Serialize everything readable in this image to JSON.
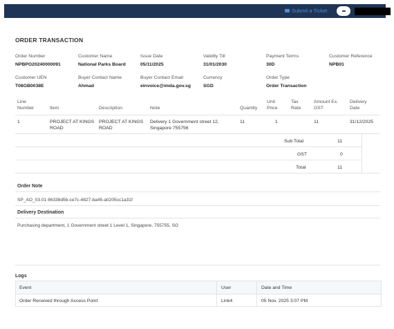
{
  "topbar": {
    "submit_ticket_label": "Submit a Ticket",
    "accent": "#1f3556"
  },
  "page": {
    "title": "ORDER TRANSACTION"
  },
  "details": {
    "order_number": {
      "label": "Order Number",
      "value": "NPBPO20240000091"
    },
    "customer_name": {
      "label": "Customer Name",
      "value": "National Parks Board"
    },
    "issue_date": {
      "label": "Issue Date",
      "value": "05/11/2025"
    },
    "validity_till": {
      "label": "Validity Till",
      "value": "31/01/2030"
    },
    "payment_terms": {
      "label": "Payment Terms",
      "value": "30D"
    },
    "customer_reference": {
      "label": "Customer Reference",
      "value": "NPB01"
    },
    "customer_uen": {
      "label": "Customer UEN",
      "value": "T08GB0038E"
    },
    "buyer_contact_name": {
      "label": "Buyer Contact Name",
      "value": "Ahmad"
    },
    "buyer_contact_email": {
      "label": "Buyer Contact Email",
      "value": "einvoice@imda.gov.sg"
    },
    "currency": {
      "label": "Currency",
      "value": "SGD"
    },
    "order_type": {
      "label": "Order Type",
      "value": "Order Transaction"
    }
  },
  "items_table": {
    "headers": {
      "line_number_1": "Line",
      "line_number_2": "Number",
      "item": "Item",
      "description": "Description",
      "note": "Note",
      "quantity": "Quantity",
      "unit_price_1": "Unit",
      "unit_price_2": "Price",
      "tax_rate_1": "Tax",
      "tax_rate_2": "Rate",
      "amount_1": "Amount Ex.",
      "amount_2": "GST",
      "delivery_date_1": "Delivery",
      "delivery_date_2": "Date"
    },
    "rows": [
      {
        "line_number": "1",
        "item_1": "PROJECT AT KINGS",
        "item_2": "ROAD",
        "description_1": "PROJECT AT KINGS",
        "description_2": "ROAD",
        "note_1": "Delivery 1 Government street 12,",
        "note_2": "Singapore 755756",
        "quantity": "11",
        "unit_price": "1",
        "tax_rate": "",
        "amount": "11",
        "delivery_date": "31/12/2025"
      }
    ]
  },
  "totals": {
    "sub_total_label": "Sub Total",
    "sub_total_value": "11",
    "gst_label": "GST",
    "gst_value": "0",
    "total_label": "Total",
    "total_value": "11"
  },
  "order_note": {
    "title": "Order Note",
    "text": "SP_AO_03.01 86338d5b-ce7c-4827-ba45-a0205cc1a31f"
  },
  "delivery_destination": {
    "title": "Delivery Destination",
    "text": "Purchasing department, 1 Government street 1 Level 1, Singapore, 755755, SG"
  },
  "logs": {
    "title": "Logs",
    "headers": {
      "event": "Event",
      "user": "User",
      "datetime": "Date and Time"
    },
    "rows": [
      {
        "event": "Order Received through Access Point",
        "user": "Link4",
        "datetime": "05 Nov. 2025 3:07 PM"
      }
    ]
  }
}
